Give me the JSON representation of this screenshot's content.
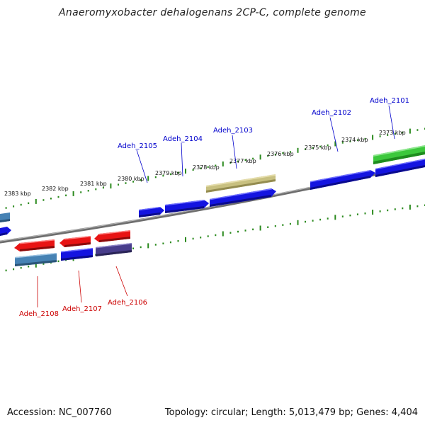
{
  "title": "Anaeromyxobacter dehalogenans 2CP-C, complete genome",
  "footer": {
    "accession": "Accession: NC_007760",
    "summary": "Topology: circular; Length: 5,013,479 bp; Genes: 4,404"
  },
  "colors": {
    "backbone": "#7a7a7a",
    "tick": "#2b8a1e",
    "label_top": "#0000cc",
    "label_bottom": "#cc0000"
  },
  "scale_labels": [
    "2383 kbp",
    "2382 kbp",
    "2381 kbp",
    "2380 kbp",
    "2379 kbp",
    "2378 kbp",
    "2377 kbp",
    "2376 kbp",
    "2375 kbp",
    "2374 kbp",
    "2373 kbp"
  ],
  "genes_top": [
    {
      "label": "Adeh_2105",
      "color": "#1414e0"
    },
    {
      "label": "Adeh_2104",
      "color": "#1414e0"
    },
    {
      "label": "Adeh_2103",
      "color": "#c8c080"
    },
    {
      "label": "Adeh_2102",
      "color": "#1414e0"
    },
    {
      "label": "Adeh_2101",
      "color": "#3cc83c"
    }
  ],
  "genes_bottom": [
    {
      "label": "Adeh_2108",
      "color": "#4682b4"
    },
    {
      "label": "Adeh_2107",
      "color": "#1414e0"
    },
    {
      "label": "Adeh_2106",
      "color": "#483d8b"
    }
  ]
}
